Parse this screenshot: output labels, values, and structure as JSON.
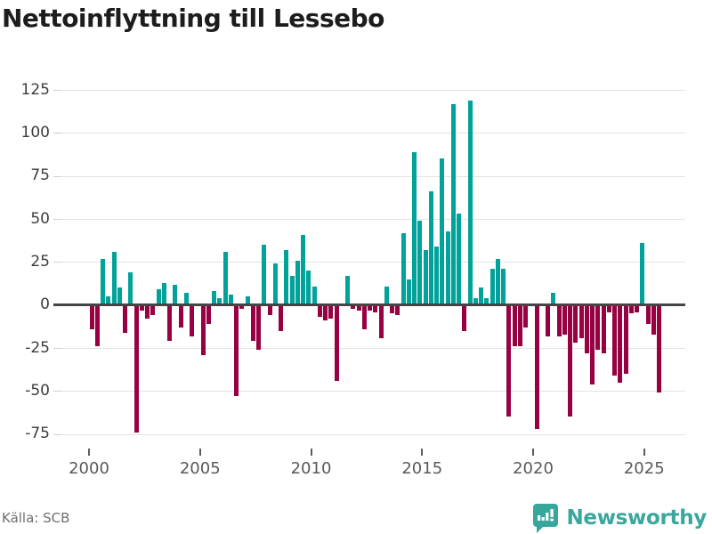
{
  "header": {
    "title": "Nettoinflyttning till Lessebo"
  },
  "source": {
    "label": "Källa: SCB"
  },
  "branding": {
    "name": "Newsworthy",
    "icon": "newsworthy-pin-barchart-icon"
  },
  "colors": {
    "positive_bar": "#00a29a",
    "negative_bar": "#970141",
    "axis": "#454545",
    "gridline": "#e3e3e3",
    "brand_teal": "#38a79d"
  },
  "chart_data": {
    "type": "bar",
    "title": "Nettoinflyttning till Lessebo",
    "frequency": "quarterly",
    "start_year": 2000,
    "x_tick_labels": [
      "2000",
      "2005",
      "2010",
      "2015",
      "2020",
      "2025"
    ],
    "y_tick_labels": [
      "125",
      "100",
      "75",
      "50",
      "25",
      "0",
      "-25",
      "-50",
      "-75"
    ],
    "y_tick_values": [
      125,
      100,
      75,
      50,
      25,
      0,
      -25,
      -50,
      -75
    ],
    "ylim": [
      -85,
      135
    ],
    "grid": true,
    "legend": "none",
    "values": [
      -14,
      -24,
      27,
      5,
      31,
      10,
      -16,
      19,
      -74,
      -3,
      -8,
      -6,
      9,
      13,
      -21,
      12,
      -13,
      7,
      -18,
      0,
      -29,
      -11,
      8,
      4,
      31,
      6,
      -53,
      -2,
      5,
      -21,
      -26,
      35,
      -6,
      24,
      -15,
      32,
      17,
      26,
      41,
      20,
      11,
      -7,
      -9,
      -8,
      -44,
      1,
      17,
      -2,
      -3,
      -14,
      -3,
      -4,
      -19,
      11,
      -5,
      -6,
      42,
      15,
      89,
      49,
      32,
      66,
      34,
      85,
      43,
      117,
      53,
      -15,
      119,
      4,
      10,
      4,
      21,
      27,
      21,
      -65,
      -24,
      -24,
      -13,
      0,
      -72,
      1,
      -18,
      7,
      -18,
      -17,
      -65,
      -22,
      -19,
      -28,
      -46,
      -26,
      -28,
      -4,
      -41,
      -45,
      -40,
      -5,
      -4,
      36,
      -11,
      -17,
      -51
    ]
  }
}
